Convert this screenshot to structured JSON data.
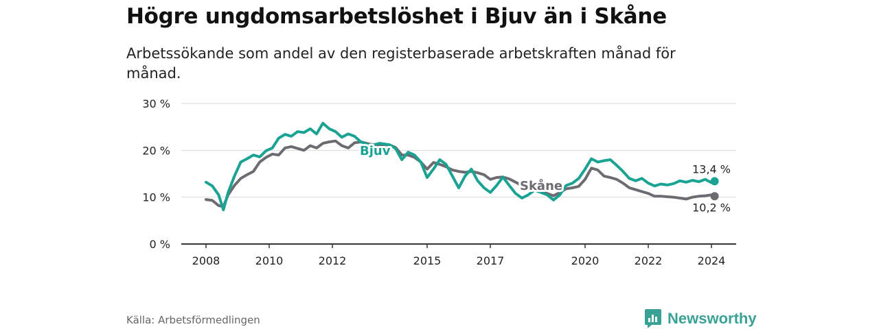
{
  "header": {
    "title": "Högre ungdomsarbetslöshet i Bjuv än i Skåne",
    "subtitle": "Arbetssökande som andel av den registerbaserade arbetskraften månad för månad."
  },
  "footer": {
    "source": "Källa: Arbetsförmedlingen",
    "brand": "Newsworthy"
  },
  "colors": {
    "bjuv": "#1aa393",
    "skane": "#6d6b70",
    "grid": "#d9d9d9",
    "axis": "#333333"
  },
  "chart_data": {
    "type": "line",
    "title": "Högre ungdomsarbetslöshet i Bjuv än i Skåne",
    "ylim": [
      0,
      30
    ],
    "xlim": [
      2008.0,
      2024.1
    ],
    "y_ticks": [
      {
        "value": 0,
        "label": "0 %"
      },
      {
        "value": 10,
        "label": "10 %"
      },
      {
        "value": 20,
        "label": "20 %"
      },
      {
        "value": 30,
        "label": "30 %"
      }
    ],
    "x_ticks": [
      {
        "value": 2008,
        "label": "2008"
      },
      {
        "value": 2010,
        "label": "2010"
      },
      {
        "value": 2012,
        "label": "2012"
      },
      {
        "value": 2015,
        "label": "2015"
      },
      {
        "value": 2017,
        "label": "2017"
      },
      {
        "value": 2020,
        "label": "2020"
      },
      {
        "value": 2022,
        "label": "2022"
      },
      {
        "value": 2024,
        "label": "2024"
      }
    ],
    "series": [
      {
        "name": "Bjuv",
        "color": "#1aa393",
        "label": "Bjuv",
        "end_label": "13,4 %",
        "x": [
          2008.0,
          2008.2,
          2008.4,
          2008.55,
          2008.7,
          2008.9,
          2009.1,
          2009.3,
          2009.5,
          2009.7,
          2009.9,
          2010.1,
          2010.3,
          2010.5,
          2010.7,
          2010.9,
          2011.1,
          2011.3,
          2011.5,
          2011.7,
          2011.9,
          2012.1,
          2012.3,
          2012.5,
          2012.7,
          2012.9,
          2013.2,
          2013.5,
          2013.8,
          2014.0,
          2014.2,
          2014.4,
          2014.6,
          2014.8,
          2015.0,
          2015.2,
          2015.4,
          2015.6,
          2015.8,
          2016.0,
          2016.2,
          2016.4,
          2016.6,
          2016.8,
          2017.0,
          2017.2,
          2017.4,
          2017.6,
          2017.8,
          2018.0,
          2018.2,
          2018.4,
          2018.6,
          2018.8,
          2019.0,
          2019.2,
          2019.4,
          2019.6,
          2019.8,
          2020.0,
          2020.2,
          2020.4,
          2020.6,
          2020.8,
          2021.0,
          2021.2,
          2021.4,
          2021.6,
          2021.8,
          2022.0,
          2022.2,
          2022.4,
          2022.6,
          2022.8,
          2023.0,
          2023.2,
          2023.4,
          2023.6,
          2023.8,
          2024.0,
          2024.1
        ],
        "values": [
          13.2,
          12.4,
          10.5,
          7.3,
          11.0,
          14.5,
          17.5,
          18.2,
          19.0,
          18.6,
          19.9,
          20.5,
          22.6,
          23.4,
          23.0,
          24.0,
          23.8,
          24.6,
          23.5,
          25.8,
          24.6,
          24.0,
          22.8,
          23.5,
          23.0,
          21.8,
          21.0,
          21.5,
          21.2,
          20.4,
          18.0,
          19.6,
          19.0,
          17.5,
          14.2,
          16.0,
          18.0,
          17.0,
          14.5,
          12.0,
          14.5,
          16.0,
          13.5,
          12.0,
          11.0,
          12.5,
          14.3,
          12.5,
          10.8,
          9.8,
          10.5,
          11.5,
          11.0,
          10.5,
          9.4,
          10.5,
          12.5,
          13.0,
          14.0,
          16.0,
          18.2,
          17.5,
          17.8,
          18.0,
          16.8,
          15.5,
          14.0,
          13.5,
          14.0,
          13.0,
          12.4,
          12.8,
          12.6,
          12.9,
          13.5,
          13.2,
          13.6,
          13.3,
          13.8,
          13.1,
          13.4
        ]
      },
      {
        "name": "Skåne",
        "color": "#6d6b70",
        "label": "Skåne",
        "end_label": "10,2 %",
        "x": [
          2008.0,
          2008.2,
          2008.4,
          2008.55,
          2008.7,
          2008.9,
          2009.1,
          2009.3,
          2009.5,
          2009.7,
          2009.9,
          2010.1,
          2010.3,
          2010.5,
          2010.7,
          2010.9,
          2011.1,
          2011.3,
          2011.5,
          2011.7,
          2011.9,
          2012.1,
          2012.3,
          2012.5,
          2012.7,
          2012.9,
          2013.2,
          2013.5,
          2013.8,
          2014.0,
          2014.2,
          2014.4,
          2014.6,
          2014.8,
          2015.0,
          2015.2,
          2015.4,
          2015.6,
          2015.8,
          2016.0,
          2016.2,
          2016.4,
          2016.6,
          2016.8,
          2017.0,
          2017.2,
          2017.4,
          2017.6,
          2017.8,
          2018.0,
          2018.2,
          2018.4,
          2018.6,
          2018.8,
          2019.0,
          2019.2,
          2019.4,
          2019.6,
          2019.8,
          2020.0,
          2020.2,
          2020.4,
          2020.6,
          2020.8,
          2021.0,
          2021.2,
          2021.4,
          2021.6,
          2021.8,
          2022.0,
          2022.2,
          2022.4,
          2022.6,
          2022.8,
          2023.0,
          2023.2,
          2023.4,
          2023.6,
          2023.8,
          2024.0,
          2024.1
        ],
        "values": [
          9.5,
          9.3,
          8.2,
          8.0,
          10.5,
          12.5,
          14.0,
          14.8,
          15.5,
          17.5,
          18.5,
          19.2,
          19.0,
          20.5,
          20.8,
          20.4,
          20.0,
          21.0,
          20.5,
          21.5,
          21.8,
          22.0,
          21.0,
          20.5,
          21.6,
          21.8,
          21.3,
          21.0,
          21.2,
          20.6,
          19.0,
          19.0,
          18.5,
          17.5,
          16.0,
          17.4,
          17.0,
          16.5,
          15.8,
          15.5,
          15.3,
          15.5,
          15.2,
          14.8,
          13.8,
          14.2,
          14.3,
          13.9,
          13.2,
          12.5,
          12.0,
          11.5,
          11.2,
          10.8,
          10.3,
          11.0,
          11.8,
          12.0,
          12.3,
          13.8,
          16.2,
          15.8,
          14.5,
          14.2,
          13.8,
          13.0,
          12.0,
          11.6,
          11.2,
          10.8,
          10.2,
          10.2,
          10.1,
          10.0,
          9.8,
          9.6,
          10.0,
          10.2,
          10.3,
          10.5,
          10.2
        ]
      }
    ]
  }
}
